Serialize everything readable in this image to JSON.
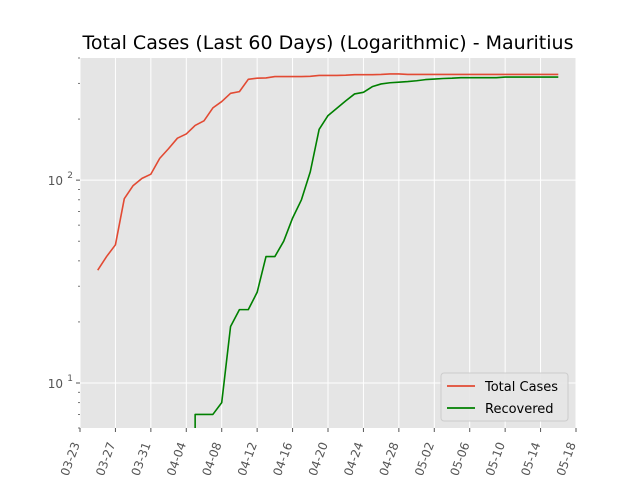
{
  "chart_data": {
    "type": "line",
    "title": "Total Cases (Last 60 Days) (Logarithmic) - Mauritius",
    "xlabel": "",
    "ylabel": "",
    "yscale": "log",
    "ylim": [
      6,
      400
    ],
    "xlim": [
      "2020-03-23",
      "2020-05-18"
    ],
    "x_ticks": [
      "03-23",
      "03-27",
      "03-31",
      "04-04",
      "04-08",
      "04-12",
      "04-16",
      "04-20",
      "04-24",
      "04-28",
      "05-02",
      "05-06",
      "05-10",
      "05-14",
      "05-18"
    ],
    "y_ticks": [
      {
        "value": 10,
        "base": "10",
        "exp": "1"
      },
      {
        "value": 100,
        "base": "10",
        "exp": "2"
      }
    ],
    "grid": true,
    "legend_position": "bottom-right",
    "series": [
      {
        "name": "Total Cases",
        "color": "#e24a33",
        "points": [
          [
            "2020-03-25",
            36
          ],
          [
            "2020-03-26",
            42
          ],
          [
            "2020-03-27",
            48
          ],
          [
            "2020-03-28",
            81
          ],
          [
            "2020-03-29",
            94
          ],
          [
            "2020-03-30",
            102
          ],
          [
            "2020-03-31",
            107
          ],
          [
            "2020-04-01",
            128
          ],
          [
            "2020-04-02",
            143
          ],
          [
            "2020-04-03",
            161
          ],
          [
            "2020-04-04",
            169
          ],
          [
            "2020-04-05",
            186
          ],
          [
            "2020-04-06",
            196
          ],
          [
            "2020-04-07",
            227
          ],
          [
            "2020-04-08",
            244
          ],
          [
            "2020-04-09",
            268
          ],
          [
            "2020-04-10",
            273
          ],
          [
            "2020-04-11",
            314
          ],
          [
            "2020-04-12",
            318
          ],
          [
            "2020-04-13",
            319
          ],
          [
            "2020-04-14",
            324
          ],
          [
            "2020-04-15",
            324
          ],
          [
            "2020-04-16",
            324
          ],
          [
            "2020-04-17",
            324
          ],
          [
            "2020-04-18",
            325
          ],
          [
            "2020-04-19",
            328
          ],
          [
            "2020-04-20",
            328
          ],
          [
            "2020-04-21",
            328
          ],
          [
            "2020-04-22",
            329
          ],
          [
            "2020-04-23",
            331
          ],
          [
            "2020-04-24",
            331
          ],
          [
            "2020-04-25",
            331
          ],
          [
            "2020-04-26",
            332
          ],
          [
            "2020-04-27",
            334
          ],
          [
            "2020-04-28",
            334
          ],
          [
            "2020-04-29",
            332
          ],
          [
            "2020-04-30",
            332
          ],
          [
            "2020-05-01",
            332
          ],
          [
            "2020-05-02",
            332
          ],
          [
            "2020-05-03",
            332
          ],
          [
            "2020-05-04",
            332
          ],
          [
            "2020-05-05",
            332
          ],
          [
            "2020-05-06",
            332
          ],
          [
            "2020-05-07",
            332
          ],
          [
            "2020-05-08",
            332
          ],
          [
            "2020-05-09",
            332
          ],
          [
            "2020-05-10",
            332
          ],
          [
            "2020-05-11",
            332
          ],
          [
            "2020-05-12",
            332
          ],
          [
            "2020-05-13",
            332
          ],
          [
            "2020-05-14",
            332
          ],
          [
            "2020-05-15",
            332
          ],
          [
            "2020-05-16",
            332
          ]
        ]
      },
      {
        "name": "Recovered",
        "color": "#008000",
        "points": [
          [
            "2020-04-05",
            6
          ],
          [
            "2020-04-05",
            7
          ],
          [
            "2020-04-06",
            7
          ],
          [
            "2020-04-07",
            7
          ],
          [
            "2020-04-08",
            8
          ],
          [
            "2020-04-09",
            19
          ],
          [
            "2020-04-10",
            23
          ],
          [
            "2020-04-11",
            23
          ],
          [
            "2020-04-12",
            28
          ],
          [
            "2020-04-13",
            42
          ],
          [
            "2020-04-14",
            42
          ],
          [
            "2020-04-15",
            50
          ],
          [
            "2020-04-16",
            65
          ],
          [
            "2020-04-17",
            80
          ],
          [
            "2020-04-18",
            110
          ],
          [
            "2020-04-19",
            178
          ],
          [
            "2020-04-20",
            208
          ],
          [
            "2020-04-21",
            226
          ],
          [
            "2020-04-22",
            246
          ],
          [
            "2020-04-23",
            266
          ],
          [
            "2020-04-24",
            271
          ],
          [
            "2020-04-25",
            289
          ],
          [
            "2020-04-26",
            298
          ],
          [
            "2020-04-27",
            302
          ],
          [
            "2020-04-28",
            304
          ],
          [
            "2020-04-29",
            306
          ],
          [
            "2020-04-30",
            309
          ],
          [
            "2020-05-01",
            313
          ],
          [
            "2020-05-02",
            315
          ],
          [
            "2020-05-03",
            317
          ],
          [
            "2020-05-04",
            318
          ],
          [
            "2020-05-05",
            320
          ],
          [
            "2020-05-06",
            320
          ],
          [
            "2020-05-07",
            320
          ],
          [
            "2020-05-08",
            320
          ],
          [
            "2020-05-09",
            320
          ],
          [
            "2020-05-10",
            322
          ],
          [
            "2020-05-11",
            322
          ],
          [
            "2020-05-12",
            322
          ],
          [
            "2020-05-13",
            322
          ],
          [
            "2020-05-14",
            322
          ],
          [
            "2020-05-15",
            322
          ],
          [
            "2020-05-16",
            322
          ]
        ]
      }
    ]
  }
}
